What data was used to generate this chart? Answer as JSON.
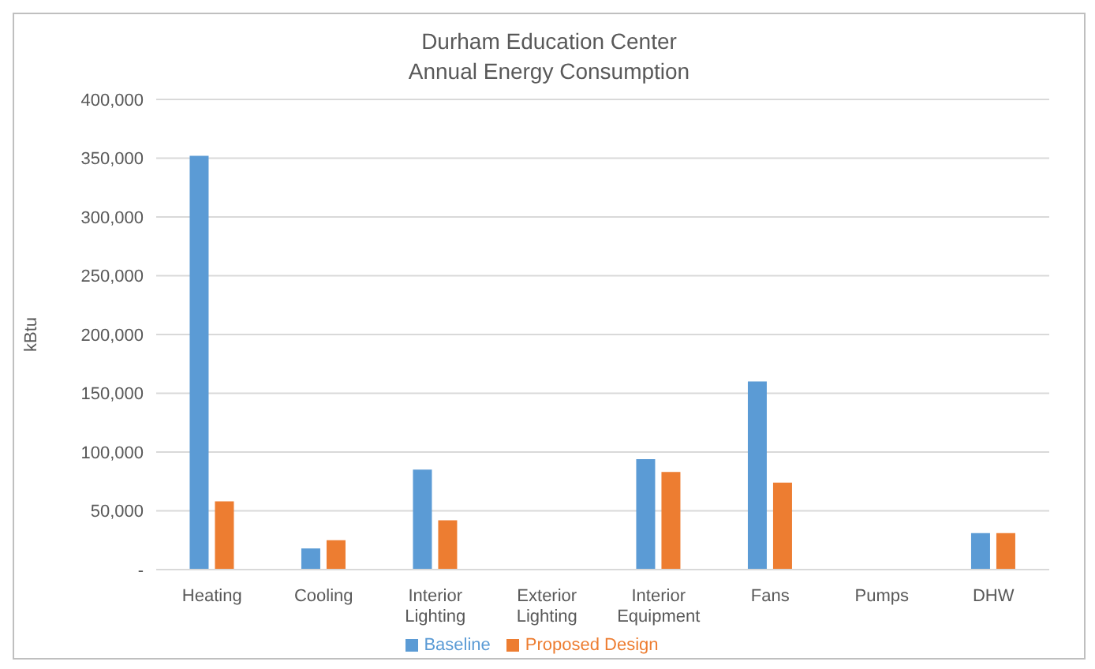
{
  "chart_data": {
    "type": "bar",
    "title": "Durham Education Center\nAnnual Energy Consumption",
    "ylabel": "kBtu",
    "categories": [
      "Heating",
      "Cooling",
      "Interior Lighting",
      "Exterior Lighting",
      "Interior Equipment",
      "Fans",
      "Pumps",
      "DHW"
    ],
    "series": [
      {
        "name": "Baseline",
        "color": "#5b9bd5",
        "values": [
          352000,
          18000,
          85000,
          0,
          94000,
          160000,
          0,
          31000
        ]
      },
      {
        "name": "Proposed Design",
        "color": "#ed7d31",
        "values": [
          58000,
          25000,
          42000,
          0,
          83000,
          74000,
          0,
          31000
        ]
      }
    ],
    "ylim": [
      0,
      400000
    ],
    "yticks": [
      {
        "value": 0,
        "label": "-"
      },
      {
        "value": 50000,
        "label": "50,000"
      },
      {
        "value": 100000,
        "label": "100,000"
      },
      {
        "value": 150000,
        "label": "150,000"
      },
      {
        "value": 200000,
        "label": "200,000"
      },
      {
        "value": 250000,
        "label": "250,000"
      },
      {
        "value": 300000,
        "label": "300,000"
      },
      {
        "value": 350000,
        "label": "350,000"
      },
      {
        "value": 400000,
        "label": "400,000"
      }
    ],
    "grid": "y",
    "legend": "bottom"
  }
}
